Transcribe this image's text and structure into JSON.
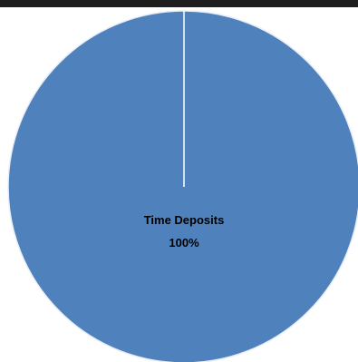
{
  "chart_data": {
    "type": "pie",
    "categories": [
      "Time Deposits"
    ],
    "values": [
      100
    ],
    "data_labels": [
      {
        "category": "Time Deposits",
        "percent": "100%"
      }
    ],
    "title": "",
    "legend": "none"
  },
  "colors": {
    "slice": "#4f81bd",
    "slice_edge": "#e8eef7",
    "top_bar": "#1e1e1e"
  }
}
